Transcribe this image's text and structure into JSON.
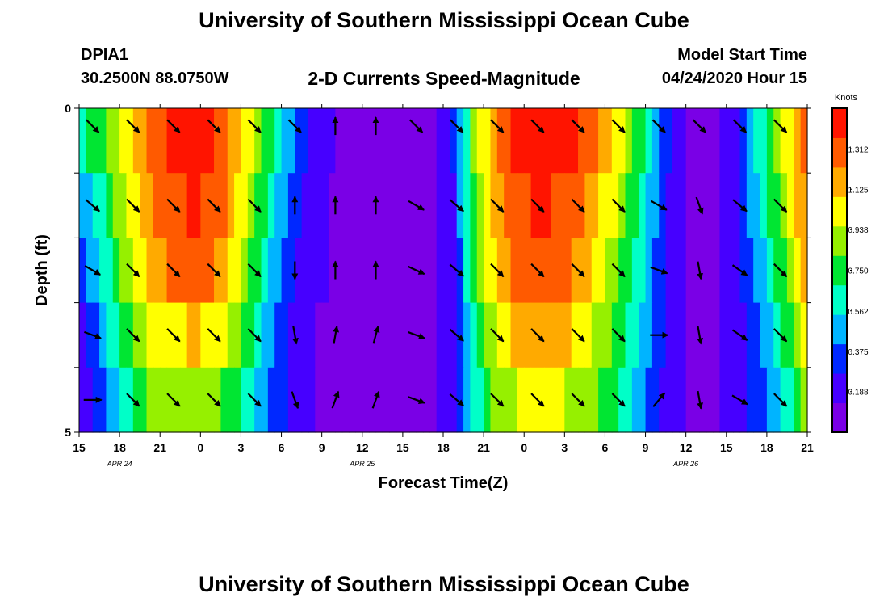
{
  "header": {
    "title": "University of Southern Mississippi Ocean Cube",
    "station_id": "DPIA1",
    "station_coords": "30.2500N 88.0750W",
    "subtitle": "2-D Currents Speed-Magnitude",
    "model_start_label": "Model Start Time",
    "model_start_value": "04/24/2020 Hour 15"
  },
  "footer": {
    "title": "University of Southern Mississippi Ocean Cube"
  },
  "chart_data": {
    "type": "heatmap",
    "title": "2-D Currents Speed-Magnitude",
    "xlabel": "Forecast Time(Z)",
    "ylabel": "Depth (ft)",
    "x_start_hour": 15,
    "x_end_hour": 69,
    "x_ticks": [
      "15",
      "18",
      "21",
      "0",
      "3",
      "6",
      "9",
      "12",
      "15",
      "18",
      "21",
      "0",
      "3",
      "6",
      "9",
      "12",
      "15",
      "18",
      "21"
    ],
    "date_labels": [
      {
        "hour": 18,
        "text": "APR  24"
      },
      {
        "hour": 36,
        "text": "APR  25"
      },
      {
        "hour": 60,
        "text": "APR  26"
      }
    ],
    "y_range_ft": [
      0,
      5
    ],
    "y_tick_labels": [
      "0",
      "",
      "",
      "",
      "",
      "5"
    ],
    "depth_rows": 5,
    "colorbar": {
      "label": "Knots",
      "min": 0.0,
      "max": 1.5,
      "tick_labels": [
        "0.188",
        "0.375",
        "0.562",
        "0.750",
        "0.938",
        "1.125",
        "1.312"
      ],
      "colors": [
        "#7a00e6",
        "#4600ff",
        "#0028ff",
        "#00b4ff",
        "#00ffc8",
        "#00e632",
        "#96f000",
        "#ffff00",
        "#ffaa00",
        "#ff5a00",
        "#ff1400"
      ]
    },
    "speed_knots_by_hour": [
      [
        0.62,
        0.78,
        1.02,
        1.26,
        1.4,
        1.42,
        1.35,
        1.08,
        0.75,
        0.42,
        0.2,
        0.12,
        0.1,
        0.09,
        0.1,
        0.12,
        0.3,
        0.96,
        1.3,
        1.43,
        1.45,
        1.4,
        1.28,
        1.02,
        0.7,
        0.3,
        0.12,
        0.1,
        0.25,
        0.62,
        0.98,
        1.35
      ],
      [
        0.46,
        0.62,
        0.98,
        1.22,
        1.35,
        1.38,
        1.28,
        0.98,
        0.66,
        0.36,
        0.18,
        0.12,
        0.1,
        0.1,
        0.1,
        0.12,
        0.28,
        0.9,
        1.24,
        1.36,
        1.38,
        1.3,
        1.12,
        0.92,
        0.62,
        0.28,
        0.12,
        0.1,
        0.26,
        0.56,
        0.92,
        1.26
      ],
      [
        0.36,
        0.55,
        0.9,
        1.15,
        1.28,
        1.3,
        1.18,
        0.9,
        0.58,
        0.3,
        0.16,
        0.12,
        0.1,
        0.1,
        0.1,
        0.12,
        0.26,
        0.84,
        1.18,
        1.28,
        1.3,
        1.22,
        1.04,
        0.84,
        0.58,
        0.26,
        0.12,
        0.1,
        0.24,
        0.46,
        0.8,
        1.16
      ],
      [
        0.22,
        0.46,
        0.76,
        0.98,
        1.08,
        1.1,
        1.0,
        0.78,
        0.5,
        0.26,
        0.14,
        0.12,
        0.1,
        0.1,
        0.1,
        0.12,
        0.22,
        0.72,
        1.04,
        1.14,
        1.16,
        1.08,
        0.94,
        0.76,
        0.52,
        0.24,
        0.12,
        0.1,
        0.22,
        0.4,
        0.7,
        1.0
      ],
      [
        0.18,
        0.34,
        0.64,
        0.84,
        0.92,
        0.92,
        0.84,
        0.66,
        0.44,
        0.22,
        0.14,
        0.12,
        0.1,
        0.1,
        0.1,
        0.12,
        0.2,
        0.64,
        0.92,
        0.98,
        1.0,
        0.94,
        0.82,
        0.66,
        0.46,
        0.22,
        0.12,
        0.1,
        0.2,
        0.34,
        0.6,
        0.88
      ]
    ],
    "arrow_hours": [
      16,
      19,
      22,
      25,
      28,
      31,
      34,
      37,
      40,
      43,
      46,
      49,
      52,
      55,
      58,
      61,
      64,
      67
    ],
    "arrow_directions_deg": [
      [
        135,
        135,
        135,
        135,
        135,
        135,
        0,
        0,
        135,
        135,
        135,
        135,
        135,
        135,
        135,
        135,
        135,
        135
      ],
      [
        130,
        135,
        135,
        135,
        135,
        0,
        0,
        0,
        120,
        130,
        135,
        135,
        135,
        135,
        120,
        160,
        130,
        135
      ],
      [
        120,
        135,
        135,
        135,
        135,
        180,
        0,
        0,
        115,
        130,
        135,
        135,
        135,
        135,
        110,
        170,
        125,
        135
      ],
      [
        110,
        135,
        135,
        135,
        135,
        170,
        10,
        15,
        110,
        130,
        135,
        135,
        135,
        135,
        90,
        170,
        125,
        135
      ],
      [
        90,
        135,
        135,
        135,
        135,
        160,
        20,
        20,
        110,
        130,
        135,
        135,
        135,
        135,
        40,
        170,
        120,
        135
      ]
    ]
  }
}
